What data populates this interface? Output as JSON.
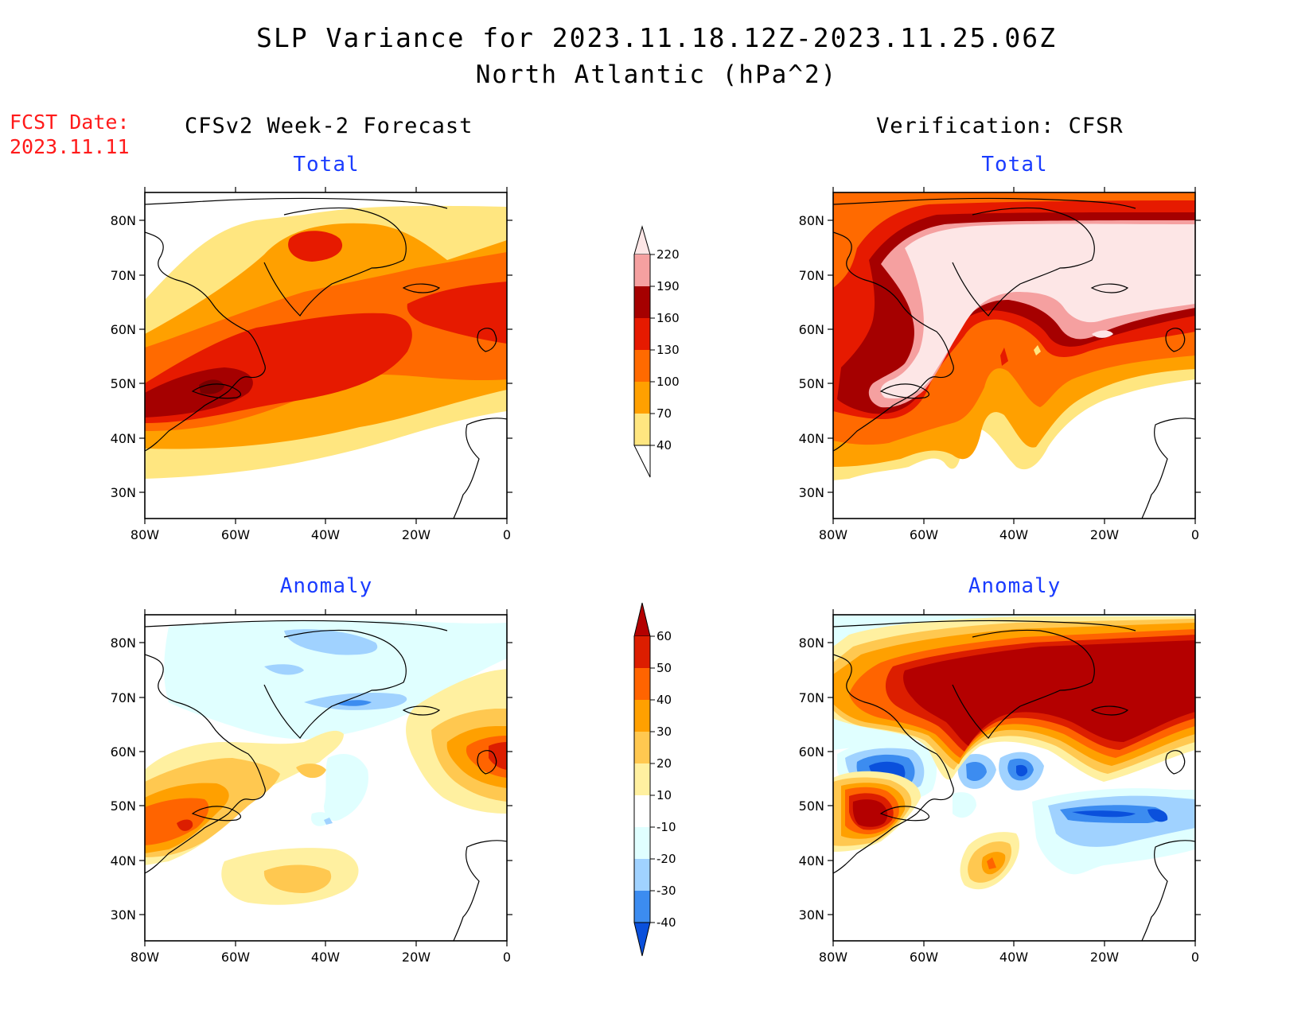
{
  "header": {
    "title": "SLP Variance for 2023.11.18.12Z-2023.11.25.06Z",
    "subtitle": "North Atlantic (hPa^2)",
    "fcst_label": "FCST Date:",
    "fcst_date": "2023.11.11"
  },
  "columns": {
    "left_title": "CFSv2 Week-2 Forecast",
    "right_title": "Verification: CFSR"
  },
  "panels": {
    "fcst_total": "Total",
    "fcst_anom": "Anomaly",
    "ver_total": "Total",
    "ver_anom": "Anomaly"
  },
  "axes": {
    "lat_labels": [
      "80N",
      "70N",
      "60N",
      "50N",
      "40N",
      "30N"
    ],
    "lon_labels": [
      "80W",
      "60W",
      "40W",
      "20W",
      "0"
    ]
  },
  "total_scale": {
    "levels": [
      "40",
      "70",
      "100",
      "130",
      "160",
      "190",
      "220"
    ],
    "colors": [
      "#ffe680",
      "#ffa000",
      "#ff6a00",
      "#e61a00",
      "#a50000",
      "#f5a0a0",
      "#fde6e6"
    ]
  },
  "anomaly_scale": {
    "levels": [
      "60",
      "50",
      "40",
      "30",
      "20",
      "10",
      "-10",
      "-20",
      "-30",
      "-40"
    ],
    "colors": [
      "#b40000",
      "#dc1e00",
      "#ff6400",
      "#ffa000",
      "#ffc850",
      "#fff0a0",
      "#ffffff",
      "#e0ffff",
      "#a0d2ff",
      "#3c8cf0",
      "#0a50dc"
    ]
  }
}
